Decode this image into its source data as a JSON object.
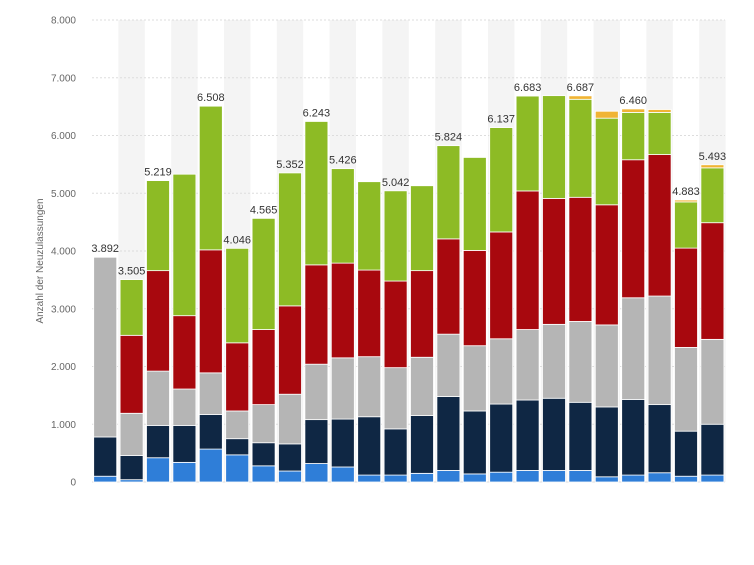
{
  "chart_data": {
    "type": "bar",
    "stacked": true,
    "ylabel": "Anzahl der Neuzulassungen",
    "xlabel": "",
    "ylim": [
      0,
      8000
    ],
    "y_ticks": [
      "0",
      "1.000",
      "2.000",
      "3.000",
      "4.000",
      "5.000",
      "6.000",
      "7.000",
      "8.000"
    ],
    "grid": true,
    "colors": {
      "blue": "#2f7ed8",
      "navy": "#0f2744",
      "gray": "#b5b5b5",
      "red": "#a8080e",
      "green": "#8dbb25",
      "yellow": "#f0b434",
      "band": "#f4f4f4",
      "gridline": "#dddddd"
    },
    "bars": [
      {
        "total_label": "3.892",
        "segments": {
          "blue": 100,
          "navy": 680,
          "gray": 3112,
          "red": 0,
          "green": 0,
          "yellow": 0
        }
      },
      {
        "total_label": "3.505",
        "segments": {
          "blue": 40,
          "navy": 420,
          "gray": 730,
          "red": 1350,
          "green": 965,
          "yellow": 0
        }
      },
      {
        "total_label": "5.219",
        "segments": {
          "blue": 420,
          "navy": 560,
          "gray": 940,
          "red": 1740,
          "green": 1559,
          "yellow": 0
        }
      },
      {
        "total_label": "",
        "segments": {
          "blue": 340,
          "navy": 640,
          "gray": 630,
          "red": 1270,
          "green": 2450,
          "yellow": 0
        }
      },
      {
        "total_label": "6.508",
        "segments": {
          "blue": 570,
          "navy": 600,
          "gray": 720,
          "red": 2130,
          "green": 2488,
          "yellow": 0
        }
      },
      {
        "total_label": "4.046",
        "segments": {
          "blue": 470,
          "navy": 280,
          "gray": 480,
          "red": 1180,
          "green": 1636,
          "yellow": 0
        }
      },
      {
        "total_label": "4.565",
        "segments": {
          "blue": 280,
          "navy": 400,
          "gray": 660,
          "red": 1300,
          "green": 1925,
          "yellow": 0
        }
      },
      {
        "total_label": "5.352",
        "segments": {
          "blue": 190,
          "navy": 470,
          "gray": 860,
          "red": 1530,
          "green": 2302,
          "yellow": 0
        }
      },
      {
        "total_label": "6.243",
        "segments": {
          "blue": 320,
          "navy": 760,
          "gray": 960,
          "red": 1720,
          "green": 2483,
          "yellow": 0
        }
      },
      {
        "total_label": "5.426",
        "segments": {
          "blue": 260,
          "navy": 830,
          "gray": 1060,
          "red": 1640,
          "green": 1636,
          "yellow": 0
        }
      },
      {
        "total_label": "",
        "segments": {
          "blue": 120,
          "navy": 1010,
          "gray": 1040,
          "red": 1500,
          "green": 1530,
          "yellow": 0
        }
      },
      {
        "total_label": "5.042",
        "segments": {
          "blue": 120,
          "navy": 800,
          "gray": 1060,
          "red": 1500,
          "green": 1562,
          "yellow": 0
        }
      },
      {
        "total_label": "",
        "segments": {
          "blue": 150,
          "navy": 1000,
          "gray": 1010,
          "red": 1500,
          "green": 1470,
          "yellow": 0
        }
      },
      {
        "total_label": "5.824",
        "segments": {
          "blue": 200,
          "navy": 1280,
          "gray": 1080,
          "red": 1650,
          "green": 1614,
          "yellow": 0
        }
      },
      {
        "total_label": "",
        "segments": {
          "blue": 140,
          "navy": 1090,
          "gray": 1130,
          "red": 1650,
          "green": 1610,
          "yellow": 0
        }
      },
      {
        "total_label": "6.137",
        "segments": {
          "blue": 170,
          "navy": 1180,
          "gray": 1130,
          "red": 1850,
          "green": 1807,
          "yellow": 0
        }
      },
      {
        "total_label": "6.683",
        "segments": {
          "blue": 200,
          "navy": 1220,
          "gray": 1220,
          "red": 2400,
          "green": 1643,
          "yellow": 0
        }
      },
      {
        "total_label": "",
        "segments": {
          "blue": 200,
          "navy": 1250,
          "gray": 1280,
          "red": 2180,
          "green": 1780,
          "yellow": 0
        }
      },
      {
        "total_label": "6.687",
        "segments": {
          "blue": 200,
          "navy": 1180,
          "gray": 1400,
          "red": 2150,
          "green": 1697,
          "yellow": 60
        }
      },
      {
        "total_label": "",
        "segments": {
          "blue": 90,
          "navy": 1210,
          "gray": 1420,
          "red": 2080,
          "green": 1500,
          "yellow": 120
        }
      },
      {
        "total_label": "6.460",
        "segments": {
          "blue": 120,
          "navy": 1310,
          "gray": 1760,
          "red": 2390,
          "green": 820,
          "yellow": 60
        }
      },
      {
        "total_label": "",
        "segments": {
          "blue": 160,
          "navy": 1180,
          "gray": 1880,
          "red": 2450,
          "green": 730,
          "yellow": 50
        }
      },
      {
        "total_label": "4.883",
        "segments": {
          "blue": 100,
          "navy": 780,
          "gray": 1450,
          "red": 1720,
          "green": 800,
          "yellow": 33
        }
      },
      {
        "total_label": "5.493",
        "segments": {
          "blue": 120,
          "navy": 880,
          "gray": 1470,
          "red": 2020,
          "green": 950,
          "yellow": 53
        }
      }
    ]
  }
}
